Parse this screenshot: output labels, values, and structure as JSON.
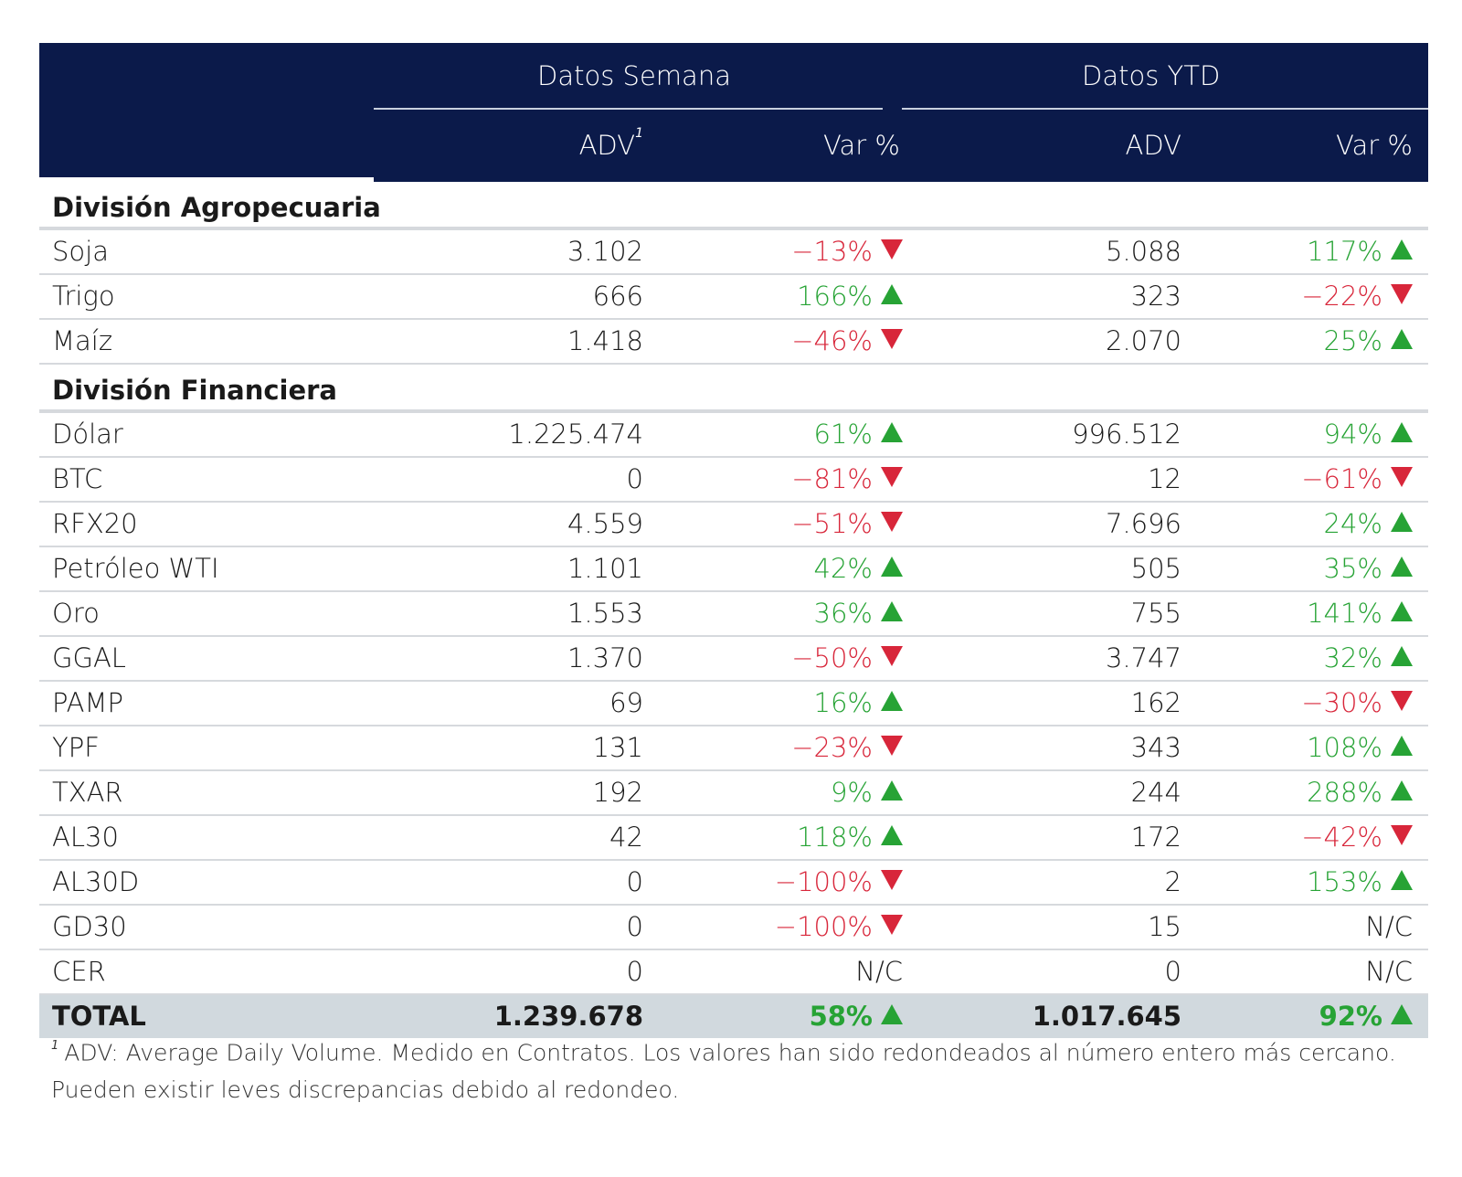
{
  "header": {
    "group_week": "Datos Semana",
    "group_ytd": "Datos YTD",
    "col_adv": "ADV",
    "col_adv_sup": "1",
    "col_var": "Var %",
    "col_ytd_adv": "ADV",
    "col_ytd_var": "Var %"
  },
  "sections": [
    {
      "title": "División Agropecuaria",
      "rows": [
        {
          "name": "Soja",
          "w_adv": "3.102",
          "w_var": "−13%",
          "w_dir": "down",
          "y_adv": "5.088",
          "y_var": "117%",
          "y_dir": "up"
        },
        {
          "name": "Trigo",
          "w_adv": "666",
          "w_var": "166%",
          "w_dir": "up",
          "y_adv": "323",
          "y_var": "−22%",
          "y_dir": "down"
        },
        {
          "name": "Maíz",
          "w_adv": "1.418",
          "w_var": "−46%",
          "w_dir": "down",
          "y_adv": "2.070",
          "y_var": "25%",
          "y_dir": "up"
        }
      ]
    },
    {
      "title": "División Financiera",
      "rows": [
        {
          "name": "Dólar",
          "w_adv": "1.225.474",
          "w_var": "61%",
          "w_dir": "up",
          "y_adv": "996.512",
          "y_var": "94%",
          "y_dir": "up"
        },
        {
          "name": "BTC",
          "w_adv": "0",
          "w_var": "−81%",
          "w_dir": "down",
          "y_adv": "12",
          "y_var": "−61%",
          "y_dir": "down"
        },
        {
          "name": "RFX20",
          "w_adv": "4.559",
          "w_var": "−51%",
          "w_dir": "down",
          "y_adv": "7.696",
          "y_var": "24%",
          "y_dir": "up"
        },
        {
          "name": "Petróleo WTI",
          "w_adv": "1.101",
          "w_var": "42%",
          "w_dir": "up",
          "y_adv": "505",
          "y_var": "35%",
          "y_dir": "up"
        },
        {
          "name": "Oro",
          "w_adv": "1.553",
          "w_var": "36%",
          "w_dir": "up",
          "y_adv": "755",
          "y_var": "141%",
          "y_dir": "up"
        },
        {
          "name": "GGAL",
          "w_adv": "1.370",
          "w_var": "−50%",
          "w_dir": "down",
          "y_adv": "3.747",
          "y_var": "32%",
          "y_dir": "up"
        },
        {
          "name": "PAMP",
          "w_adv": "69",
          "w_var": "16%",
          "w_dir": "up",
          "y_adv": "162",
          "y_var": "−30%",
          "y_dir": "down"
        },
        {
          "name": "YPF",
          "w_adv": "131",
          "w_var": "−23%",
          "w_dir": "down",
          "y_adv": "343",
          "y_var": "108%",
          "y_dir": "up"
        },
        {
          "name": "TXAR",
          "w_adv": "192",
          "w_var": "9%",
          "w_dir": "up",
          "y_adv": "244",
          "y_var": "288%",
          "y_dir": "up"
        },
        {
          "name": "AL30",
          "w_adv": "42",
          "w_var": "118%",
          "w_dir": "up",
          "y_adv": "172",
          "y_var": "−42%",
          "y_dir": "down"
        },
        {
          "name": "AL30D",
          "w_adv": "0",
          "w_var": "−100%",
          "w_dir": "down",
          "y_adv": "2",
          "y_var": "153%",
          "y_dir": "up"
        },
        {
          "name": "GD30",
          "w_adv": "0",
          "w_var": "−100%",
          "w_dir": "down",
          "y_adv": "15",
          "y_var": "N/C",
          "y_dir": "none"
        },
        {
          "name": "CER",
          "w_adv": "0",
          "w_var": "N/C",
          "w_dir": "none",
          "y_adv": "0",
          "y_var": "N/C",
          "y_dir": "none"
        }
      ]
    }
  ],
  "total": {
    "name": "TOTAL",
    "w_adv": "1.239.678",
    "w_var": "58%",
    "w_dir": "up",
    "y_adv": "1.017.645",
    "y_var": "92%",
    "y_dir": "up"
  },
  "footnote": {
    "marker": "1",
    "text": "ADV: Average Daily Volume. Medido en Contratos. Los valores han sido redondeados al número entero más cercano. Pueden existir leves discrepancias debido al redondeo."
  },
  "colors": {
    "header_bg": "#0b1a4a",
    "positive": "#27a335",
    "negative": "#d8263a",
    "total_bg": "#d1d9de"
  }
}
